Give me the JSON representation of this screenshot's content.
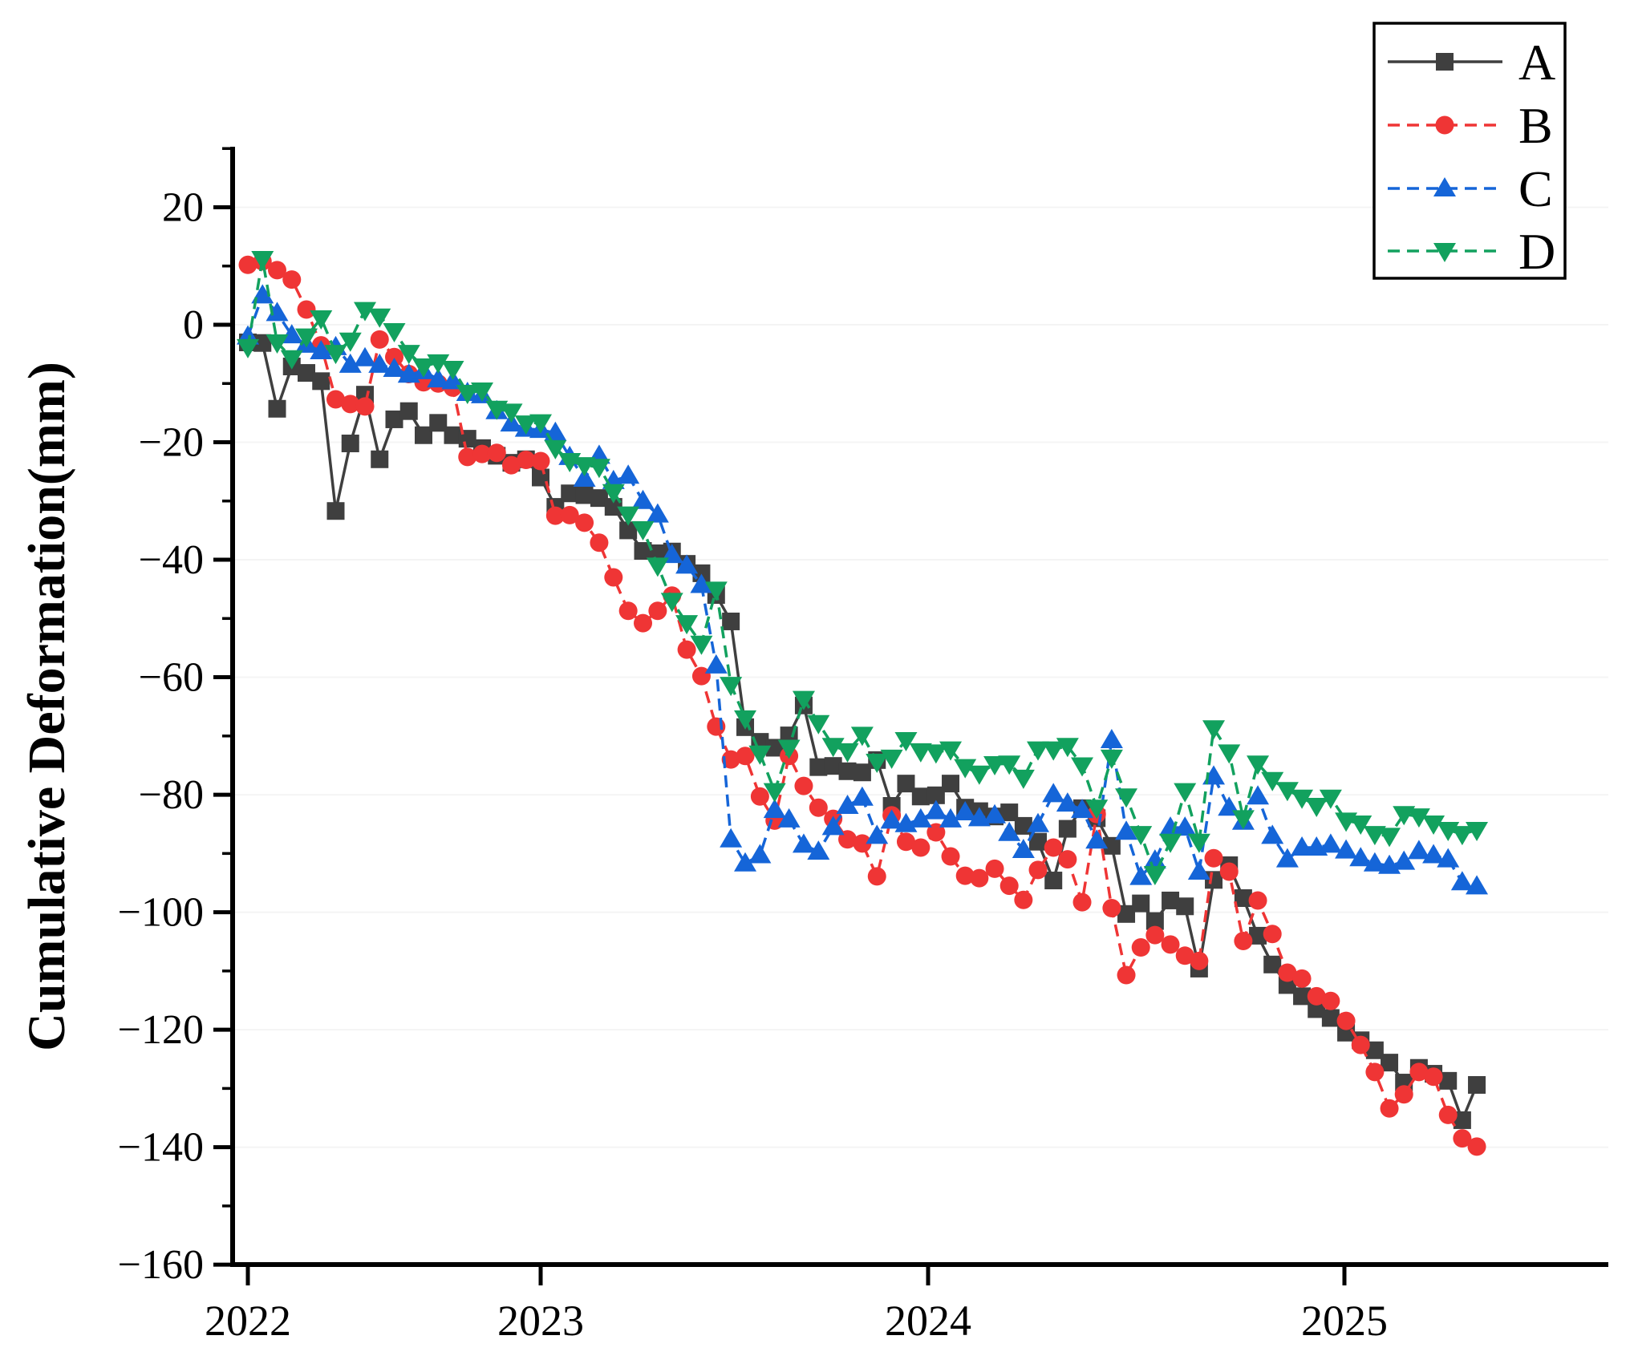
{
  "chart_data": {
    "type": "line",
    "title": "",
    "xlabel": "",
    "ylabel": "Cumulative Deformation(mm)",
    "ylim": [
      -160,
      30
    ],
    "xlim": [
      2021.95,
      2025.63
    ],
    "yticks_major": [
      20,
      0,
      -20,
      -40,
      -60,
      -80,
      -100,
      -120,
      -140,
      -160
    ],
    "yticks_minor": [
      30,
      10,
      -10,
      -30,
      -50,
      -70,
      -90,
      -110,
      -130,
      -150
    ],
    "xticks": [
      2022,
      2023,
      2024,
      2025
    ],
    "grid": "faint-horizontal",
    "legend_position": "top-right",
    "legend_entries": [
      "A",
      "B",
      "C",
      "D"
    ],
    "x": [
      2022.0,
      2022.05,
      2022.1,
      2022.15,
      2022.2,
      2022.25,
      2022.3,
      2022.35,
      2022.4,
      2022.45,
      2022.5,
      2022.55,
      2022.6,
      2022.65,
      2022.7,
      2022.75,
      2022.8,
      2022.85,
      2022.9,
      2022.95,
      2023.0,
      2023.038,
      2023.075,
      2023.113,
      2023.151,
      2023.188,
      2023.226,
      2023.264,
      2023.302,
      2023.339,
      2023.377,
      2023.415,
      2023.453,
      2023.491,
      2023.528,
      2023.566,
      2023.604,
      2023.641,
      2023.679,
      2023.717,
      2023.755,
      2023.792,
      2023.83,
      2023.868,
      2023.906,
      2023.943,
      2023.981,
      2024.019,
      2024.054,
      2024.089,
      2024.123,
      2024.16,
      2024.195,
      2024.229,
      2024.264,
      2024.301,
      2024.335,
      2024.37,
      2024.405,
      2024.441,
      2024.476,
      2024.511,
      2024.545,
      2024.582,
      2024.617,
      2024.651,
      2024.686,
      2024.723,
      2024.757,
      2024.792,
      2024.827,
      2024.863,
      2024.898,
      2024.933,
      2024.967,
      2025.004,
      2025.039,
      2025.073,
      2025.108,
      2025.143,
      2025.179,
      2025.214,
      2025.249,
      2025.283,
      2025.318
    ],
    "series": [
      {
        "name": "A",
        "color": "#3f3f3f",
        "marker": "square",
        "line_style": "solid",
        "values": [
          -3,
          -3.1,
          -14.3,
          -7.1,
          -8.2,
          -9.6,
          -31.7,
          -20.2,
          -11.9,
          -22.9,
          -16.1,
          -14.7,
          -18.8,
          -16.7,
          -18.8,
          -19.4,
          -21,
          -22.3,
          -23.5,
          -22.9,
          -26,
          -31,
          -28.7,
          -29,
          -29.5,
          -31,
          -35,
          -38.5,
          -38.9,
          -38.6,
          -40.7,
          -42.3,
          -46,
          -50.5,
          -68.5,
          -71,
          -72,
          -69.9,
          -64.8,
          -75.3,
          -75.1,
          -76,
          -76.2,
          -74.1,
          -81.9,
          -78.1,
          -80.3,
          -80.1,
          -78.1,
          -82.2,
          -82.8,
          -83.7,
          -83,
          -85.3,
          -88,
          -94.6,
          -85.8,
          -82.3,
          -84,
          -88.7,
          -100.3,
          -98.5,
          -101.5,
          -98,
          -99,
          -109.6,
          -94.5,
          -92,
          -97.6,
          -104,
          -108.9,
          -112.4,
          -114.3,
          -116.5,
          -118,
          -120.5,
          -121.8,
          -123.5,
          -125.6,
          -129,
          -126.5,
          -127.5,
          -128.7,
          -135.4,
          -129.4
        ]
      },
      {
        "name": "B",
        "color": "#ef3535",
        "marker": "circle",
        "line_style": "dashed",
        "values": [
          10.2,
          10.8,
          9.3,
          7.7,
          2.6,
          -3.5,
          -12.7,
          -13.5,
          -13.9,
          -2.5,
          -5.5,
          -8.4,
          -9.8,
          -10,
          -10.7,
          -22.5,
          -22,
          -21.8,
          -23.9,
          -23,
          -23.2,
          -32.5,
          -32.4,
          -33.7,
          -37.1,
          -43,
          -48.7,
          -50.8,
          -48.7,
          -46.1,
          -55.3,
          -59.8,
          -68.4,
          -74,
          -73.4,
          -80.3,
          -84.4,
          -73.4,
          -78.5,
          -82.2,
          -84.1,
          -87.6,
          -88.3,
          -93.9,
          -83.5,
          -88,
          -89,
          -86.4,
          -90.5,
          -93.8,
          -94.2,
          -92.6,
          -95.5,
          -97.9,
          -92.8,
          -89,
          -91,
          -98.3,
          -83.3,
          -99.3,
          -110.7,
          -106,
          -103.9,
          -105.5,
          -107.4,
          -108.3,
          -90.8,
          -93.1,
          -104.9,
          -98,
          -103.7,
          -110.3,
          -111.3,
          -114.3,
          -115.1,
          -118.5,
          -122.6,
          -127.2,
          -133.4,
          -131,
          -127.2,
          -128,
          -134.5,
          -138.5,
          -139.9
        ]
      },
      {
        "name": "C",
        "color": "#1565d8",
        "marker": "triangle-up",
        "line_style": "dashed",
        "values": [
          -2,
          5,
          2,
          -1.8,
          -3.4,
          -4.5,
          -3.8,
          -6.8,
          -5.7,
          -6.8,
          -7.5,
          -8.5,
          -7.9,
          -9.3,
          -9.6,
          -11.6,
          -12,
          -14.7,
          -16.8,
          -17.7,
          -17.9,
          -18.4,
          -22.5,
          -26.2,
          -22.3,
          -26.6,
          -25.7,
          -30,
          -32.3,
          -39.2,
          -41,
          -44.3,
          -58,
          -87.6,
          -91.7,
          -90.3,
          -82.6,
          -84.2,
          -88.5,
          -89.7,
          -85.5,
          -81.9,
          -80.5,
          -87,
          -84.4,
          -85,
          -84.2,
          -82.8,
          -84.2,
          -83,
          -84,
          -83.5,
          -86.5,
          -89.4,
          -85,
          -79.9,
          -81.5,
          -82.6,
          -87.8,
          -70.7,
          -86.3,
          -94,
          -91.2,
          -85.6,
          -85.6,
          -93.1,
          -76.9,
          -82.2,
          -84.6,
          -80.3,
          -87,
          -91,
          -89,
          -89,
          -88.5,
          -89.5,
          -90.8,
          -91.7,
          -92.1,
          -91.4,
          -89.6,
          -90.3,
          -91,
          -94.9,
          -95.6
        ]
      },
      {
        "name": "D",
        "color": "#12a15e",
        "marker": "triangle-down",
        "line_style": "dashed",
        "values": [
          -3.8,
          11.2,
          -3,
          -5.7,
          -2,
          1.1,
          -4.8,
          -2.7,
          2.5,
          1.4,
          -1.1,
          -4.8,
          -7.1,
          -6.4,
          -7.5,
          -11.6,
          -11.2,
          -14.3,
          -14.8,
          -16.8,
          -16.6,
          -21,
          -23.2,
          -23.9,
          -24.2,
          -28.5,
          -32.3,
          -34.8,
          -41,
          -47,
          -50.8,
          -54.3,
          -45.1,
          -61.3,
          -67,
          -73,
          -79.4,
          -72,
          -63.7,
          -67.8,
          -71.7,
          -72.6,
          -69.8,
          -74.4,
          -73.7,
          -70.7,
          -72.6,
          -72.8,
          -72.3,
          -75.3,
          -76.4,
          -74.8,
          -74.7,
          -77.1,
          -72.3,
          -72.3,
          -71.7,
          -75,
          -82.2,
          -73.7,
          -80.3,
          -86.7,
          -93.5,
          -88,
          -79.4,
          -88,
          -68.7,
          -72.8,
          -84,
          -74.7,
          -77.5,
          -79.2,
          -80.5,
          -81.9,
          -80.5,
          -84.4,
          -84.9,
          -86.7,
          -87,
          -83.3,
          -83.7,
          -84.9,
          -86,
          -86.7,
          -86
        ]
      }
    ]
  }
}
